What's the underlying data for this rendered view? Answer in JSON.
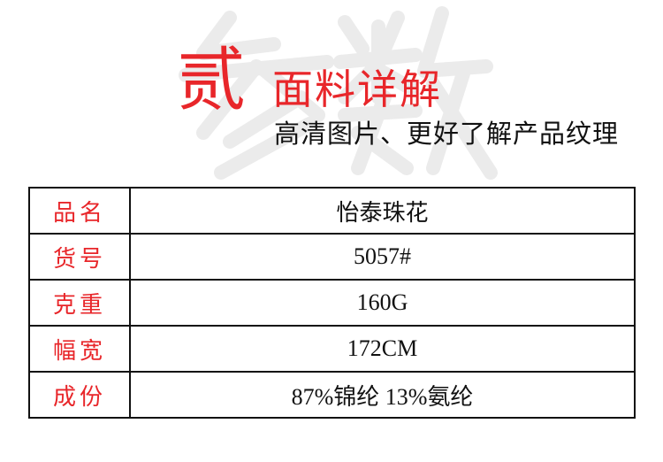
{
  "header": {
    "watermark": "参数",
    "number": "贰",
    "title": "面料详解",
    "subtitle": "高清图片、更好了解产品纹理"
  },
  "colors": {
    "accent": "#e8262a",
    "text": "#111111",
    "watermark": "#ebebeb"
  },
  "table": {
    "rows": [
      {
        "label": "品名",
        "value": "怡泰珠花"
      },
      {
        "label": "货号",
        "value": "5057#"
      },
      {
        "label": "克重",
        "value": "160G"
      },
      {
        "label": "幅宽",
        "value": "172CM"
      },
      {
        "label": "成份",
        "value": "87%锦纶 13%氨纶"
      }
    ]
  }
}
